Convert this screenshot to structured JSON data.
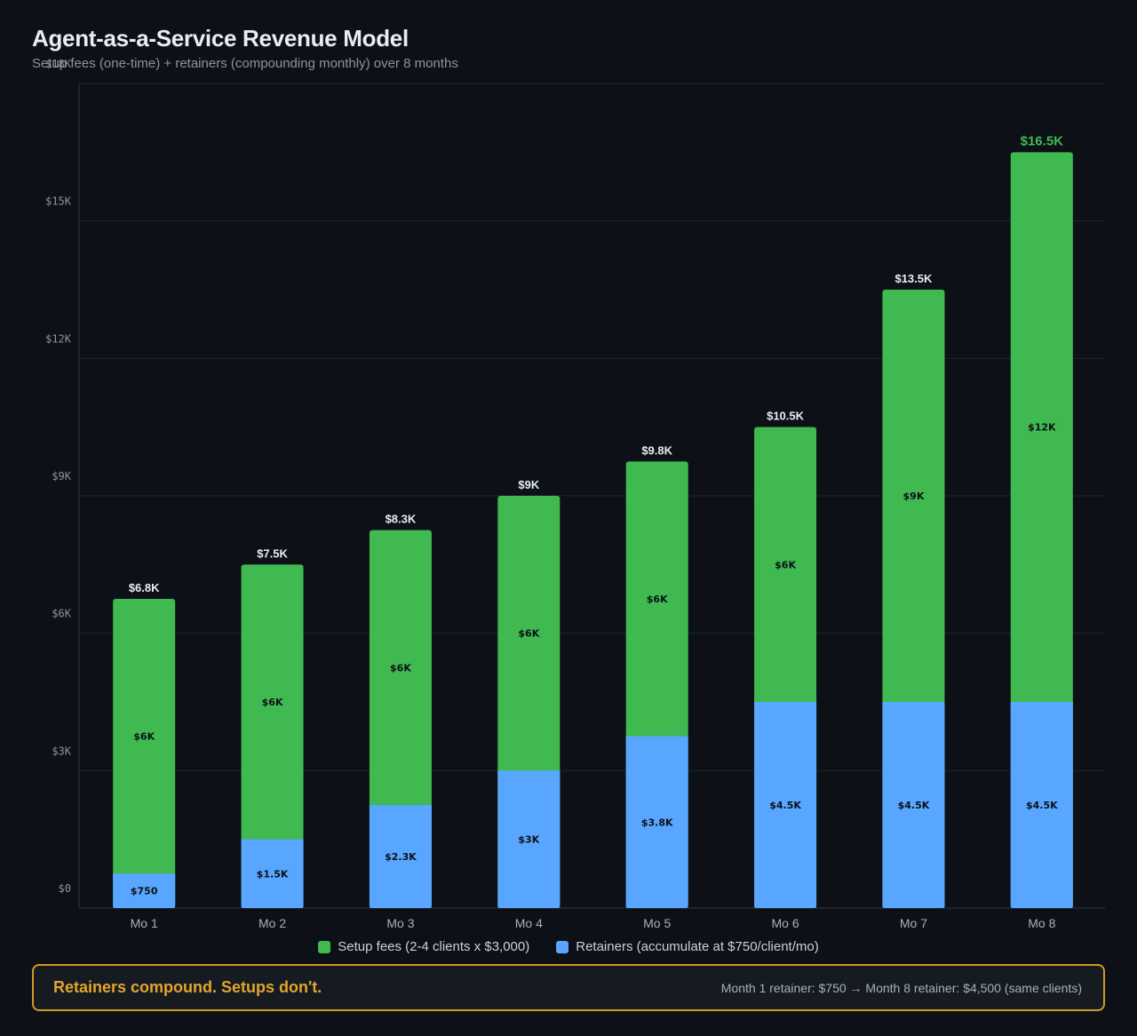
{
  "header": {
    "title": "Agent-as-a-Service Revenue Model",
    "subtitle": "Setup fees (one-time) + retainers (compounding monthly) over 8 months"
  },
  "chart_data": {
    "type": "bar",
    "stacked": true,
    "categories": [
      "Mo 1",
      "Mo 2",
      "Mo 3",
      "Mo 4",
      "Mo 5",
      "Mo 6",
      "Mo 7",
      "Mo 8"
    ],
    "series": [
      {
        "name": "Retainers (accumulate at $750/client/mo)",
        "color": "#58a6ff",
        "values": [
          750,
          1500,
          2250,
          3000,
          3750,
          4500,
          4500,
          4500
        ],
        "labels": [
          "$750",
          "$1.5K",
          "$2.3K",
          "$3K",
          "$3.8K",
          "$4.5K",
          "$4.5K",
          "$4.5K"
        ]
      },
      {
        "name": "Setup fees (2-4 clients x $3,000)",
        "color": "#3fb950",
        "values": [
          6000,
          6000,
          6000,
          6000,
          6000,
          6000,
          9000,
          12000
        ],
        "labels": [
          "$6K",
          "$6K",
          "$6K",
          "$6K",
          "$6K",
          "$6K",
          "$9K",
          "$12K"
        ]
      }
    ],
    "totals": [
      6750,
      7500,
      8250,
      9000,
      9750,
      10500,
      13500,
      16500
    ],
    "total_labels": [
      "$6.8K",
      "$7.5K",
      "$8.3K",
      "$9K",
      "$9.8K",
      "$10.5K",
      "$13.5K",
      "$16.5K"
    ],
    "highlight_color": "#3fb950",
    "ylim": [
      0,
      18000
    ],
    "yticks": [
      0,
      3000,
      6000,
      9000,
      12000,
      15000,
      18000
    ],
    "ytick_labels": [
      "$0",
      "$3K",
      "$6K",
      "$9K",
      "$12K",
      "$15K",
      "$18K"
    ],
    "xlabel": "",
    "ylabel": "",
    "grid": true,
    "legend_position": "bottom-center"
  },
  "legend": {
    "items": [
      {
        "label": "Setup fees (2-4 clients x $3,000)",
        "color": "#3fb950"
      },
      {
        "label": "Retainers (accumulate at $750/client/mo)",
        "color": "#58a6ff"
      }
    ]
  },
  "callout": {
    "headline": "Retainers compound. Setups don't.",
    "detail": "Month 1 retainer: $750 → Month 8 retainer: $4,500 (same clients)",
    "border_color": "#d29922"
  }
}
